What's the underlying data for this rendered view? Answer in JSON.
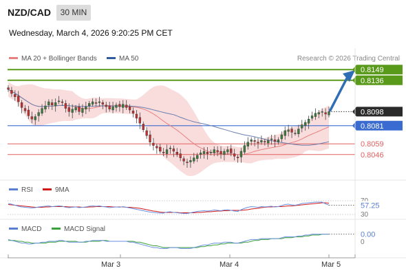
{
  "header": {
    "pair": "NZD/CAD",
    "timeframe": "30 MIN",
    "datetime": "Wednesday, March 4, 2026 9:20:25 PM CET",
    "copyright": "Research © 2026 Trading Central"
  },
  "legend": {
    "ma20_bb": "MA 20 + Bollinger Bands",
    "ma50": "MA 50",
    "rsi": "RSI",
    "rsi_ma": "9MA",
    "macd": "MACD",
    "macd_signal": "MACD Signal"
  },
  "colors": {
    "green": "#5a9a1a",
    "blue_line": "#3a6bd0",
    "red_line": "#e0605f",
    "band_fill": "#f7d0d0",
    "ma50": "#2d5b9e",
    "candle_up": "#3d7a3d",
    "candle_down": "#c03030",
    "arrow": "#2f6db5"
  },
  "chart_data": [
    {
      "type": "candlestick",
      "title": "NZD/CAD",
      "ylim": [
        0.8015,
        0.8175
      ],
      "x_ticks": [
        "Mar 3",
        "Mar 4",
        "Mar 5"
      ],
      "closes": [
        0.8125,
        0.812,
        0.8116,
        0.811,
        0.8103,
        0.8099,
        0.8093,
        0.8089,
        0.8092,
        0.8097,
        0.8102,
        0.8105,
        0.811,
        0.8106,
        0.8109,
        0.8111,
        0.8109,
        0.8102,
        0.8098,
        0.8101,
        0.8103,
        0.8098,
        0.8102,
        0.8104,
        0.8108,
        0.811,
        0.8108,
        0.811,
        0.8107,
        0.8104,
        0.8101,
        0.8104,
        0.8106,
        0.8104,
        0.8107,
        0.8103,
        0.81,
        0.8096,
        0.809,
        0.8084,
        0.8076,
        0.8069,
        0.8061,
        0.8057,
        0.8054,
        0.805,
        0.8048,
        0.8052,
        0.8054,
        0.805,
        0.8046,
        0.8042,
        0.8038,
        0.8036,
        0.8039,
        0.8042,
        0.8045,
        0.8048,
        0.805,
        0.8047,
        0.8049,
        0.8052,
        0.8049,
        0.8047,
        0.805,
        0.8052,
        0.8048,
        0.8044,
        0.8042,
        0.805,
        0.8057,
        0.8061,
        0.8064,
        0.8062,
        0.806,
        0.8063,
        0.8061,
        0.8063,
        0.8065,
        0.8062,
        0.8064,
        0.807,
        0.8075,
        0.8076,
        0.8073,
        0.8072,
        0.8077,
        0.8082,
        0.8085,
        0.8089,
        0.8093,
        0.8096,
        0.8097,
        0.8098,
        0.8095,
        0.8098
      ],
      "levels": [
        {
          "label": "0.8149",
          "value": 0.8149,
          "kind": "resistance"
        },
        {
          "label": "0.8136",
          "value": 0.8136,
          "kind": "resistance"
        },
        {
          "label": "0.8098",
          "value": 0.8098,
          "kind": "last"
        },
        {
          "label": "0.8081",
          "value": 0.8081,
          "kind": "pivot"
        },
        {
          "label": "0.8059",
          "value": 0.8059,
          "kind": "support"
        },
        {
          "label": "0.8046",
          "value": 0.8046,
          "kind": "support"
        }
      ],
      "forecast": {
        "from": 0.8098,
        "to": 0.8145
      }
    },
    {
      "type": "line",
      "title": "RSI",
      "tick_labels": [
        "70",
        "30"
      ],
      "value_label": "57.25",
      "ylim": [
        30,
        70
      ],
      "rsi": [
        62,
        60,
        57,
        54,
        52,
        51,
        50,
        49,
        50,
        52,
        53,
        54,
        55,
        53,
        54,
        55,
        54,
        51,
        50,
        51,
        52,
        50,
        51,
        52,
        54,
        55,
        54,
        55,
        53,
        52,
        50,
        51,
        52,
        51,
        53,
        51,
        49,
        47,
        45,
        43,
        41,
        39,
        37,
        36,
        35,
        34,
        34,
        37,
        38,
        36,
        35,
        34,
        33,
        33,
        35,
        37,
        39,
        40,
        41,
        40,
        41,
        43,
        42,
        41,
        43,
        44,
        42,
        40,
        39,
        44,
        48,
        51,
        53,
        52,
        51,
        53,
        52,
        53,
        54,
        52,
        53,
        56,
        59,
        60,
        58,
        57,
        59,
        62,
        63,
        64,
        65,
        66,
        66,
        66,
        61,
        57.25
      ],
      "rsi_ma": [
        59,
        58,
        57,
        56,
        55,
        54,
        53,
        52,
        51,
        51,
        51,
        52,
        52,
        53,
        53,
        53,
        53,
        53,
        52,
        52,
        52,
        52,
        51,
        51,
        52,
        52,
        53,
        53,
        53,
        53,
        53,
        52,
        52,
        52,
        52,
        51,
        51,
        50,
        49,
        48,
        46,
        44,
        42,
        40,
        39,
        37,
        36,
        36,
        36,
        36,
        36,
        35,
        35,
        35,
        35,
        35,
        36,
        36,
        37,
        38,
        38,
        39,
        40,
        40,
        41,
        41,
        42,
        42,
        42,
        42,
        43,
        44,
        46,
        47,
        48,
        50,
        51,
        52,
        52,
        53,
        53,
        53,
        54,
        55,
        55,
        56,
        57,
        58,
        59,
        60,
        61,
        62,
        63,
        64,
        64,
        63
      ]
    },
    {
      "type": "line",
      "title": "MACD",
      "tick_labels": [
        "0"
      ],
      "value_label": "0.00",
      "ylim": [
        -0.001,
        0.001
      ],
      "macd": [
        0.0002,
        0.0001,
        0.0,
        -0.0001,
        -0.0002,
        -0.0002,
        -0.0003,
        -0.0003,
        -0.0002,
        -0.0002,
        -0.0001,
        -0.0001,
        0.0,
        0.0,
        0.0,
        0.0001,
        0.0001,
        0.0,
        -0.0001,
        -0.0001,
        -0.0001,
        -0.0001,
        -0.0001,
        0.0,
        0.0,
        0.0001,
        0.0001,
        0.0001,
        0.0001,
        0.0,
        0.0,
        0.0,
        0.0,
        0.0,
        0.0,
        0.0,
        -0.0001,
        -0.0001,
        -0.0002,
        -0.0003,
        -0.0004,
        -0.0005,
        -0.0006,
        -0.0007,
        -0.0007,
        -0.0008,
        -0.0008,
        -0.0008,
        -0.0007,
        -0.0007,
        -0.0007,
        -0.0008,
        -0.0008,
        -0.0008,
        -0.0008,
        -0.0007,
        -0.0006,
        -0.0005,
        -0.0004,
        -0.0004,
        -0.0003,
        -0.0002,
        -0.0002,
        -0.0002,
        -0.0001,
        -0.0001,
        -0.0001,
        -0.0002,
        -0.0002,
        -0.0001,
        0.0,
        0.0001,
        0.0002,
        0.0002,
        0.0002,
        0.0003,
        0.0003,
        0.0003,
        0.0003,
        0.0003,
        0.0003,
        0.0004,
        0.0005,
        0.0005,
        0.0005,
        0.0005,
        0.0006,
        0.0006,
        0.0007,
        0.0007,
        0.0008,
        0.0008,
        0.0008,
        0.0008,
        0.0008,
        0.0008
      ],
      "signal": [
        0.0001,
        0.0001,
        0.0001,
        0.0,
        0.0,
        -0.0001,
        -0.0001,
        -0.0002,
        -0.0002,
        -0.0002,
        -0.0002,
        -0.0002,
        -0.0001,
        -0.0001,
        -0.0001,
        0.0,
        0.0,
        0.0,
        0.0,
        0.0,
        0.0,
        -0.0001,
        -0.0001,
        -0.0001,
        0.0,
        0.0,
        0.0,
        0.0,
        0.0001,
        0.0001,
        0.0,
        0.0,
        0.0,
        0.0,
        0.0,
        0.0,
        0.0,
        0.0,
        -0.0001,
        -0.0001,
        -0.0002,
        -0.0003,
        -0.0004,
        -0.0005,
        -0.0005,
        -0.0006,
        -0.0007,
        -0.0007,
        -0.0007,
        -0.0007,
        -0.0007,
        -0.0007,
        -0.0007,
        -0.0007,
        -0.0007,
        -0.0007,
        -0.0007,
        -0.0006,
        -0.0006,
        -0.0005,
        -0.0005,
        -0.0004,
        -0.0004,
        -0.0003,
        -0.0003,
        -0.0002,
        -0.0002,
        -0.0002,
        -0.0002,
        -0.0002,
        -0.0001,
        -0.0001,
        0.0,
        0.0001,
        0.0001,
        0.0002,
        0.0002,
        0.0002,
        0.0003,
        0.0003,
        0.0003,
        0.0003,
        0.0004,
        0.0004,
        0.0004,
        0.0005,
        0.0005,
        0.0005,
        0.0006,
        0.0006,
        0.0007,
        0.0007,
        0.0007,
        0.0008,
        0.0008,
        0.0008
      ]
    }
  ]
}
